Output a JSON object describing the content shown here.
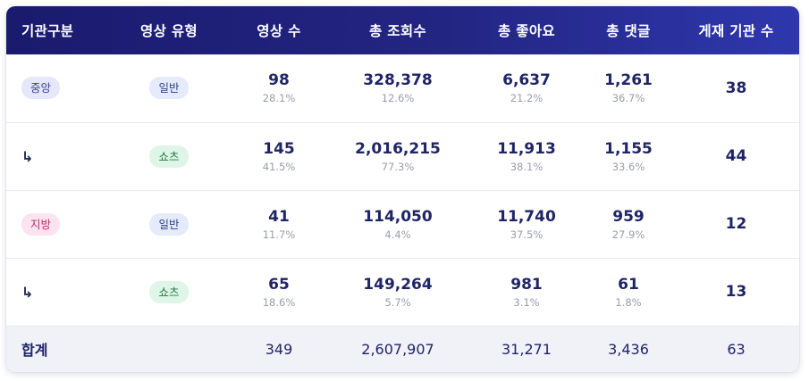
{
  "headers": [
    "기관구분",
    "영상 유형",
    "영상 수",
    "총 조회수",
    "총 좋아요",
    "총 댓글",
    "게재 기관 수"
  ],
  "rows": [
    {
      "org": "중앙",
      "type": "일반",
      "videos": "98",
      "videos_pct": "28.1%",
      "views": "328,378",
      "views_pct": "12.6%",
      "likes": "6,637",
      "likes_pct": "21.2%",
      "comments": "1,261",
      "comments_pct": "36.7%",
      "institutions": "38"
    },
    {
      "org": "↳",
      "type": "쇼츠",
      "videos": "145",
      "videos_pct": "41.5%",
      "views": "2,016,215",
      "views_pct": "77.3%",
      "likes": "11,913",
      "likes_pct": "38.1%",
      "comments": "1,155",
      "comments_pct": "33.6%",
      "institutions": "44"
    },
    {
      "org": "지방",
      "type": "일반",
      "videos": "41",
      "videos_pct": "11.7%",
      "views": "114,050",
      "views_pct": "4.4%",
      "likes": "11,740",
      "likes_pct": "37.5%",
      "comments": "959",
      "comments_pct": "27.9%",
      "institutions": "12"
    },
    {
      "org": "↳",
      "type": "쇼츠",
      "videos": "65",
      "videos_pct": "18.6%",
      "views": "149,264",
      "views_pct": "5.7%",
      "likes": "981",
      "likes_pct": "3.1%",
      "comments": "61",
      "comments_pct": "1.8%",
      "institutions": "13"
    }
  ],
  "total": {
    "label": "합계",
    "videos": "349",
    "views": "2,607,907",
    "likes": "31,271",
    "comments": "3,436",
    "institutions": "63"
  },
  "colors": {
    "header_start": "#1a1a6e",
    "header_end": "#2e37ad",
    "text": "#1f2466",
    "muted": "#9a9cab"
  }
}
